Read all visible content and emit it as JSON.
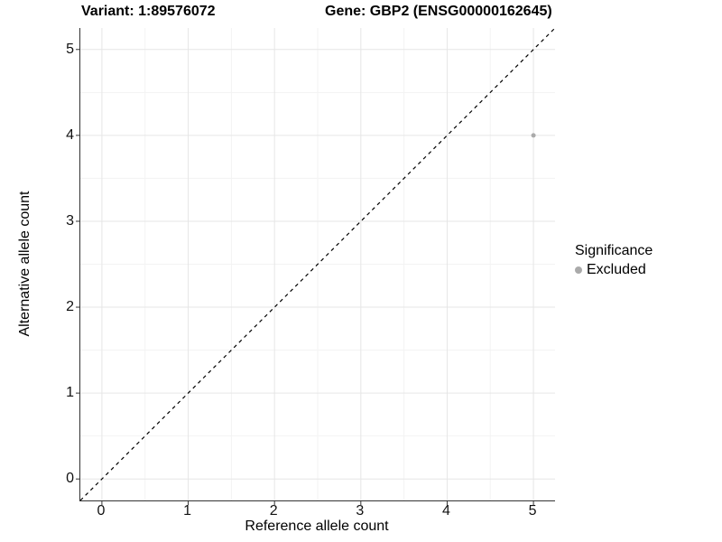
{
  "header": {
    "title_left": "Variant: 1:89576072",
    "title_right": "Gene: GBP2 (ENSG00000162645)"
  },
  "chart_data": {
    "type": "scatter",
    "title_left": "Variant: 1:89576072",
    "title_right": "Gene: GBP2 (ENSG00000162645)",
    "xlabel": "Reference allele count",
    "ylabel": "Alternative allele count",
    "xlim": [
      -0.25,
      5.25
    ],
    "ylim": [
      -0.25,
      5.25
    ],
    "x_ticks": [
      0,
      1,
      2,
      3,
      4,
      5
    ],
    "y_ticks": [
      0,
      1,
      2,
      3,
      4,
      5
    ],
    "x_minor_ticks": [
      0.5,
      1.5,
      2.5,
      3.5,
      4.5
    ],
    "y_minor_ticks": [
      0.5,
      1.5,
      2.5,
      3.5,
      4.5
    ],
    "grid": true,
    "grid_major_color": "#e6e6e6",
    "grid_minor_color": "#f3f3f3",
    "axis_line_color": "#333333",
    "series": [
      {
        "name": "Excluded",
        "color": "#aaaaaa",
        "marker": "circle",
        "points": [
          {
            "x": 5,
            "y": 4
          }
        ]
      }
    ],
    "reference_line": {
      "kind": "abline",
      "slope": 1,
      "intercept": 0,
      "style": "dashed",
      "color": "#000000"
    },
    "legend": {
      "title": "Significance",
      "position": "right",
      "items": [
        {
          "label": "Excluded",
          "color": "#aaaaaa",
          "marker": "circle"
        }
      ]
    }
  }
}
